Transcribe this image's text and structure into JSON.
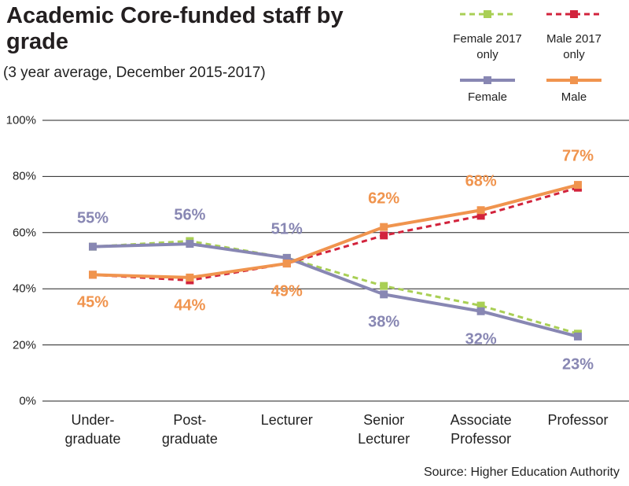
{
  "chart_data": {
    "type": "line",
    "title": "Academic Core-funded staff by grade",
    "subtitle": "(3 year average, December 2015-2017)",
    "source": "Source: Higher Education Authority",
    "categories": [
      "Under-graduate",
      "Post-graduate",
      "Lecturer",
      "Senior Lecturer",
      "Associate Professor",
      "Professor"
    ],
    "series": [
      {
        "name": "Female 2017 only",
        "color": "#a9cf55",
        "dashed": true,
        "values": [
          55,
          57,
          51,
          41,
          34,
          24
        ]
      },
      {
        "name": "Male 2017 only",
        "color": "#d2233c",
        "dashed": true,
        "values": [
          45,
          43,
          49,
          59,
          66,
          76
        ]
      },
      {
        "name": "Female",
        "color": "#8887b3",
        "dashed": false,
        "values": [
          55,
          56,
          51,
          38,
          32,
          23
        ],
        "value_labels": [
          "55%",
          "56%",
          "51%",
          "38%",
          "32%",
          "23%"
        ]
      },
      {
        "name": "Male",
        "color": "#f0944e",
        "dashed": false,
        "values": [
          45,
          44,
          49,
          62,
          68,
          77
        ],
        "value_labels": [
          "45%",
          "44%",
          "49%",
          "62%",
          "68%",
          "77%"
        ]
      }
    ],
    "ylim": [
      0,
      100
    ],
    "yticks": [
      {
        "value": 0,
        "label": "0%"
      },
      {
        "value": 20,
        "label": "20%"
      },
      {
        "value": 40,
        "label": "40%"
      },
      {
        "value": 60,
        "label": "60%"
      },
      {
        "value": 80,
        "label": "80%"
      },
      {
        "value": 100,
        "label": "100%"
      }
    ],
    "grid": true
  }
}
